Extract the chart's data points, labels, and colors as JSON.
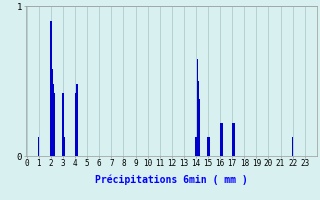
{
  "values": [
    0,
    0,
    0,
    0,
    0,
    0,
    0,
    0,
    0,
    0,
    0.13,
    0,
    0,
    0,
    0,
    0,
    0,
    0,
    0,
    0,
    0.9,
    0.58,
    0.48,
    0.42,
    0,
    0,
    0,
    0,
    0,
    0,
    0.42,
    0.13,
    0,
    0,
    0,
    0,
    0,
    0,
    0,
    0,
    0.42,
    0.48,
    0.48,
    0,
    0,
    0,
    0,
    0,
    0,
    0,
    0,
    0,
    0,
    0,
    0,
    0,
    0,
    0,
    0,
    0,
    0,
    0,
    0,
    0,
    0,
    0,
    0,
    0,
    0,
    0,
    0,
    0,
    0,
    0,
    0,
    0,
    0,
    0,
    0,
    0,
    0,
    0,
    0,
    0,
    0,
    0,
    0,
    0,
    0,
    0,
    0,
    0,
    0,
    0,
    0,
    0,
    0,
    0,
    0,
    0,
    0,
    0,
    0,
    0,
    0,
    0,
    0,
    0,
    0,
    0,
    0,
    0,
    0,
    0,
    0,
    0,
    0,
    0,
    0,
    0,
    0,
    0,
    0,
    0,
    0,
    0,
    0,
    0,
    0,
    0,
    0,
    0,
    0,
    0,
    0,
    0,
    0,
    0,
    0,
    0,
    0.13,
    0.65,
    0.5,
    0.38,
    0,
    0,
    0,
    0,
    0,
    0,
    0.13,
    0.13,
    0,
    0,
    0,
    0,
    0,
    0,
    0,
    0,
    0.22,
    0.22,
    0.22,
    0,
    0,
    0,
    0,
    0,
    0,
    0,
    0.22,
    0.22,
    0.22,
    0,
    0,
    0,
    0,
    0,
    0,
    0,
    0,
    0,
    0,
    0,
    0,
    0,
    0,
    0,
    0,
    0,
    0,
    0,
    0,
    0,
    0,
    0,
    0,
    0,
    0,
    0,
    0,
    0,
    0,
    0,
    0,
    0,
    0,
    0,
    0,
    0,
    0,
    0,
    0,
    0,
    0,
    0,
    0,
    0,
    0,
    0,
    0.13,
    0,
    0,
    0,
    0,
    0,
    0,
    0,
    0,
    0,
    0,
    0,
    0,
    0,
    0,
    0,
    0,
    0,
    0,
    0
  ],
  "n_hours": 24,
  "n_per_hour": 10,
  "ylim": [
    0,
    1.0
  ],
  "yticks": [
    0,
    1
  ],
  "xlabel": "Précipitations 6min ( mm )",
  "bar_color": "#0000cc",
  "bg_color": "#d8f0f0",
  "grid_color": "#b0cccc",
  "axis_color": "#999999",
  "xlabel_fontsize": 7,
  "tick_fontsize": 5.5
}
